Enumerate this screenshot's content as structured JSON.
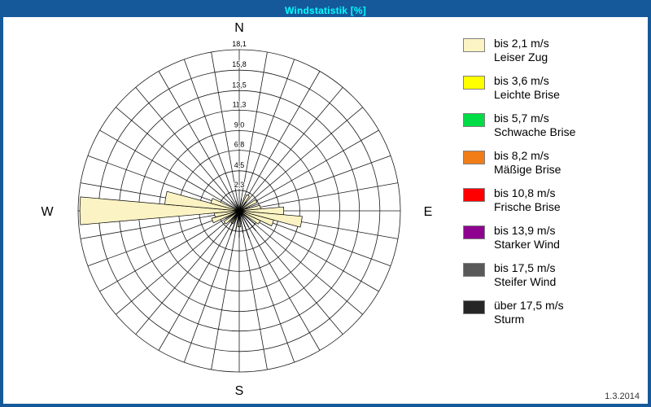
{
  "header": {
    "title": "Windstatistik [%]"
  },
  "footer": {
    "date": "1.3.2014"
  },
  "colors": {
    "frame": "#16599A",
    "titlebar": "#16599A",
    "title_text": "#00FFFF",
    "grid": "#1A1A1A",
    "background": "#FFFFFF"
  },
  "legend": {
    "items": [
      {
        "speed": "bis 2,1 m/s",
        "name": "Leiser Zug",
        "color": "#FBF3C3"
      },
      {
        "speed": "bis 3,6 m/s",
        "name": "Leichte Brise",
        "color": "#FFFF00"
      },
      {
        "speed": "bis 5,7 m/s",
        "name": "Schwache Brise",
        "color": "#00DC46"
      },
      {
        "speed": "bis 8,2 m/s",
        "name": "Mäßige Brise",
        "color": "#F07D18"
      },
      {
        "speed": "bis 10,8 m/s",
        "name": "Frische Brise",
        "color": "#FF0000"
      },
      {
        "speed": "bis 13,9 m/s",
        "name": "Starker Wind",
        "color": "#8E008E"
      },
      {
        "speed": "bis 17,5 m/s",
        "name": "Steifer Wind",
        "color": "#595959"
      },
      {
        "speed": "über 17,5 m/s",
        "name": "Sturm",
        "color": "#262626"
      }
    ]
  },
  "chart_data": {
    "type": "windrose",
    "title": "Windstatistik [%]",
    "unit": "%",
    "sectors": 36,
    "max": 18.1,
    "ring_values": [
      2.3,
      4.5,
      6.8,
      9.0,
      11.3,
      13.5,
      15.8,
      18.1
    ],
    "ring_labels": [
      "2,3",
      "4,5",
      "6,8",
      "9,0",
      "11,3",
      "13,5",
      "15,8",
      "18,1"
    ],
    "compass": {
      "north": "N",
      "east": "E",
      "south": "S",
      "west": "W"
    },
    "petals": {
      "category": "bis 2,1 m/s",
      "color": "#FBF3C3",
      "data": [
        {
          "dir": 30,
          "value": 2.0
        },
        {
          "dir": 60,
          "value": 2.2
        },
        {
          "dir": 80,
          "value": 2.4
        },
        {
          "dir": 90,
          "value": 5.0
        },
        {
          "dir": 100,
          "value": 7.1
        },
        {
          "dir": 110,
          "value": 4.0
        },
        {
          "dir": 120,
          "value": 2.6
        },
        {
          "dir": 180,
          "value": 1.8
        },
        {
          "dir": 210,
          "value": 1.6
        },
        {
          "dir": 230,
          "value": 2.1
        },
        {
          "dir": 250,
          "value": 3.2
        },
        {
          "dir": 260,
          "value": 2.8
        },
        {
          "dir": 270,
          "value": 17.9
        },
        {
          "dir": 280,
          "value": 8.4
        },
        {
          "dir": 290,
          "value": 3.3
        }
      ]
    },
    "spikes": {
      "color": "#000000",
      "data": [
        {
          "dir": 10,
          "value": 1.4
        },
        {
          "dir": 40,
          "value": 1.3
        },
        {
          "dir": 130,
          "value": 2.4
        },
        {
          "dir": 140,
          "value": 2.9
        },
        {
          "dir": 150,
          "value": 2.1
        },
        {
          "dir": 160,
          "value": 3.3
        },
        {
          "dir": 170,
          "value": 2.5
        },
        {
          "dir": 180,
          "value": 3.0
        },
        {
          "dir": 190,
          "value": 2.3
        },
        {
          "dir": 200,
          "value": 2.9
        },
        {
          "dir": 210,
          "value": 2.0
        },
        {
          "dir": 220,
          "value": 1.7
        },
        {
          "dir": 240,
          "value": 1.8
        },
        {
          "dir": 320,
          "value": 1.4
        },
        {
          "dir": 340,
          "value": 1.2
        }
      ]
    }
  }
}
